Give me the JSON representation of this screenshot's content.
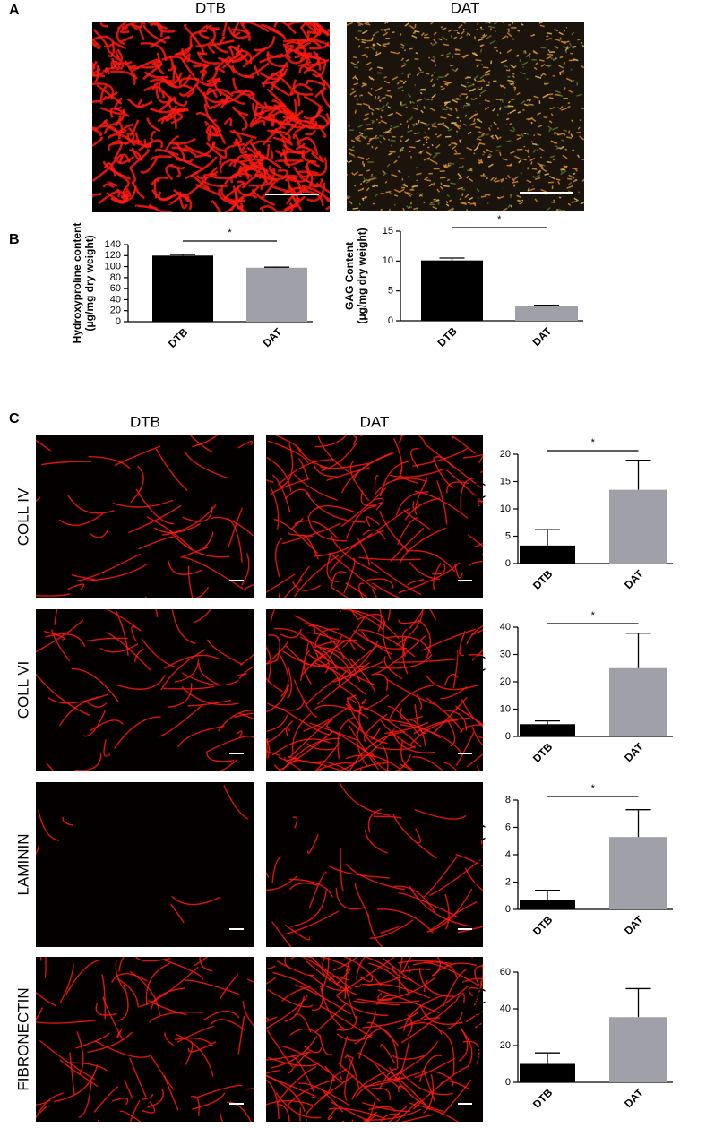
{
  "panels": [
    "A",
    "B",
    "C"
  ],
  "panel_a": {
    "titles": [
      "DTB",
      "DAT"
    ]
  },
  "panel_c": {
    "columns": [
      "DTB",
      "DAT"
    ],
    "rows": [
      "COLL IV",
      "COLL VI",
      "LAMININ",
      "FIBRONECTIN"
    ]
  },
  "chart_data": [
    {
      "type": "bar",
      "ylabel": [
        "Hydroxyproline content",
        "(μg/mg dry weight)"
      ],
      "categories": [
        "DTB",
        "DAT"
      ],
      "values": [
        120,
        98
      ],
      "errors": [
        2,
        1
      ],
      "colors": [
        "#000000",
        "#a0a0a8"
      ],
      "ylim": [
        0,
        140
      ],
      "yticks": [
        0,
        20,
        40,
        60,
        80,
        100,
        120,
        140
      ],
      "annotation": "*"
    },
    {
      "type": "bar",
      "ylabel": [
        "GAG Content",
        "(μg/mg dry weight)"
      ],
      "categories": [
        "DTB",
        "DAT"
      ],
      "values": [
        10.1,
        2.4
      ],
      "errors": [
        0.4,
        0.2
      ],
      "colors": [
        "#000000",
        "#a0a0a8"
      ],
      "ylim": [
        0,
        15
      ],
      "yticks": [
        0,
        5,
        10,
        15
      ],
      "annotation": "*"
    },
    {
      "type": "bar",
      "ylabel": [
        "Coll IV (%)"
      ],
      "categories": [
        "DTB",
        "DAT"
      ],
      "values": [
        3.3,
        13.5
      ],
      "errors": [
        2.9,
        5.4
      ],
      "colors": [
        "#000000",
        "#a0a0a8"
      ],
      "ylim": [
        0,
        20
      ],
      "yticks": [
        0,
        5,
        10,
        15,
        20
      ],
      "annotation": "*"
    },
    {
      "type": "bar",
      "ylabel": [
        "Coll VI (%)"
      ],
      "categories": [
        "DTB",
        "DAT"
      ],
      "values": [
        4.5,
        25
      ],
      "errors": [
        1.2,
        12.8
      ],
      "colors": [
        "#000000",
        "#a0a0a8"
      ],
      "ylim": [
        0,
        40
      ],
      "yticks": [
        0,
        10,
        20,
        30,
        40
      ],
      "annotation": "*"
    },
    {
      "type": "bar",
      "ylabel": [
        "Laminin (%)"
      ],
      "categories": [
        "DTB",
        "DAT"
      ],
      "values": [
        0.7,
        5.3
      ],
      "errors": [
        0.7,
        2.0
      ],
      "colors": [
        "#000000",
        "#a0a0a8"
      ],
      "ylim": [
        0,
        8
      ],
      "yticks": [
        0,
        2,
        4,
        6,
        8
      ],
      "annotation": "*"
    },
    {
      "type": "bar",
      "ylabel": [
        "Fibronectin (%)"
      ],
      "categories": [
        "DTB",
        "DAT"
      ],
      "values": [
        10,
        35.5
      ],
      "errors": [
        6,
        15.5
      ],
      "colors": [
        "#000000",
        "#a0a0a8"
      ],
      "ylim": [
        0,
        60
      ],
      "yticks": [
        0,
        20,
        40,
        60
      ]
    }
  ]
}
